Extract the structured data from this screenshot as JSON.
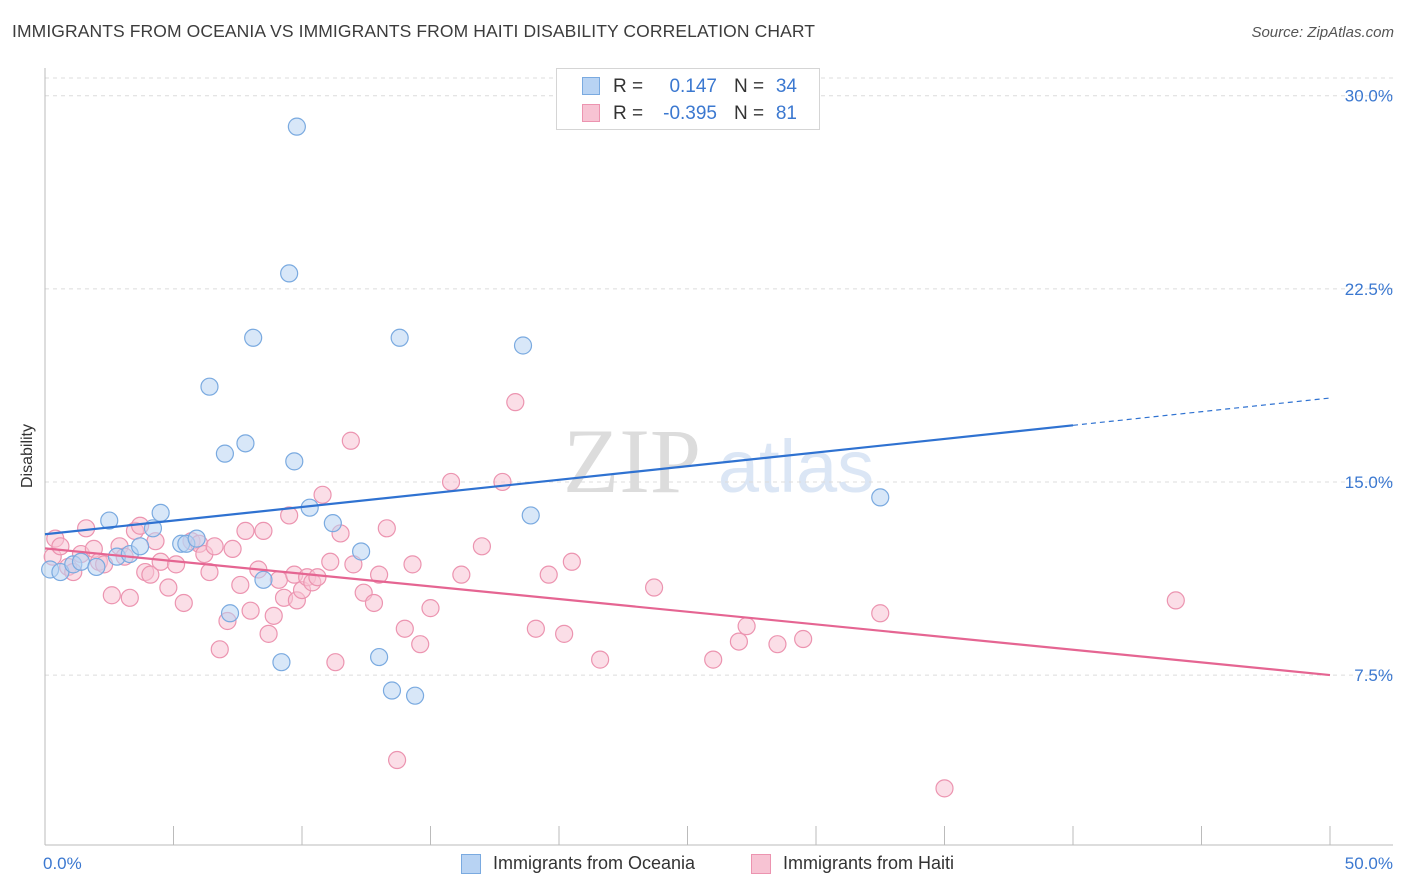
{
  "title": "IMMIGRANTS FROM OCEANIA VS IMMIGRANTS FROM HAITI DISABILITY CORRELATION CHART",
  "source": "Source: ZipAtlas.com",
  "watermark": {
    "zip": "ZIP",
    "atlas": "atlas"
  },
  "stats": [
    {
      "r_label": "R =",
      "r_value": "0.147",
      "n_label": "N =",
      "n_value": "34"
    },
    {
      "r_label": "R =",
      "r_value": "-0.395",
      "n_label": "N =",
      "n_value": "81"
    }
  ],
  "legend": [
    {
      "label": "Immigrants from Oceania"
    },
    {
      "label": "Immigrants from Haiti"
    }
  ],
  "colors": {
    "oceania_fill": "#b8d3f3",
    "oceania_stroke": "#7aaae0",
    "oceania_line": "#2f72d1",
    "haiti_fill": "#f7c3d3",
    "haiti_stroke": "#ec94b0",
    "haiti_line": "#e56592",
    "tick_label": "#3b78d0",
    "grid": "#dcdcdc"
  },
  "chart_data": {
    "type": "scatter",
    "title": "IMMIGRANTS FROM OCEANIA VS IMMIGRANTS FROM HAITI DISABILITY CORRELATION CHART",
    "xlabel": "",
    "ylabel": "Disability",
    "xlim": [
      0,
      50
    ],
    "ylim": [
      0.9,
      31.0
    ],
    "x_tick_labels": [
      "0.0%",
      "50.0%"
    ],
    "y_ticks": [
      7.5,
      15.0,
      22.5,
      30.0
    ],
    "y_tick_labels": [
      "7.5%",
      "15.0%",
      "22.5%",
      "30.0%"
    ],
    "grid": "horizontal dashed",
    "legend_position": "bottom-center",
    "series": [
      {
        "name": "Immigrants from Oceania",
        "points": [
          [
            0.2,
            11.6
          ],
          [
            0.6,
            11.5
          ],
          [
            1.1,
            11.8
          ],
          [
            1.4,
            11.9
          ],
          [
            2.0,
            11.7
          ],
          [
            2.5,
            13.5
          ],
          [
            2.8,
            12.1
          ],
          [
            3.3,
            12.2
          ],
          [
            3.7,
            12.5
          ],
          [
            4.2,
            13.2
          ],
          [
            4.5,
            13.8
          ],
          [
            5.3,
            12.6
          ],
          [
            5.5,
            12.6
          ],
          [
            5.9,
            12.8
          ],
          [
            6.4,
            18.7
          ],
          [
            7.0,
            16.1
          ],
          [
            7.2,
            9.9
          ],
          [
            7.8,
            16.5
          ],
          [
            8.1,
            20.6
          ],
          [
            8.5,
            11.2
          ],
          [
            9.2,
            8.0
          ],
          [
            9.5,
            23.1
          ],
          [
            9.8,
            28.8
          ],
          [
            9.7,
            15.8
          ],
          [
            10.3,
            14.0
          ],
          [
            11.2,
            13.4
          ],
          [
            12.3,
            12.3
          ],
          [
            13.0,
            8.2
          ],
          [
            13.5,
            6.9
          ],
          [
            13.8,
            20.6
          ],
          [
            14.4,
            6.7
          ],
          [
            18.6,
            20.3
          ],
          [
            18.9,
            13.7
          ],
          [
            32.5,
            14.4
          ]
        ],
        "trend": {
          "x": [
            0,
            40,
            50
          ],
          "y": [
            12.97,
            17.2,
            18.26
          ],
          "solid_to_x": 40
        }
      },
      {
        "name": "Immigrants from Haiti",
        "points": [
          [
            0.3,
            12.1
          ],
          [
            0.4,
            12.8
          ],
          [
            0.6,
            12.5
          ],
          [
            0.9,
            11.7
          ],
          [
            1.1,
            11.5
          ],
          [
            1.4,
            12.2
          ],
          [
            1.6,
            13.2
          ],
          [
            1.9,
            12.4
          ],
          [
            2.1,
            11.9
          ],
          [
            2.3,
            11.8
          ],
          [
            2.6,
            10.6
          ],
          [
            2.9,
            12.5
          ],
          [
            3.1,
            12.1
          ],
          [
            3.3,
            10.5
          ],
          [
            3.5,
            13.1
          ],
          [
            3.7,
            13.3
          ],
          [
            3.9,
            11.5
          ],
          [
            4.1,
            11.4
          ],
          [
            4.3,
            12.7
          ],
          [
            4.5,
            11.9
          ],
          [
            4.8,
            10.9
          ],
          [
            5.1,
            11.8
          ],
          [
            5.4,
            10.3
          ],
          [
            5.7,
            12.7
          ],
          [
            6.0,
            12.6
          ],
          [
            6.2,
            12.2
          ],
          [
            6.4,
            11.5
          ],
          [
            6.6,
            12.5
          ],
          [
            6.8,
            8.5
          ],
          [
            7.1,
            9.6
          ],
          [
            7.3,
            12.4
          ],
          [
            7.6,
            11.0
          ],
          [
            7.8,
            13.1
          ],
          [
            8.0,
            10.0
          ],
          [
            8.3,
            11.6
          ],
          [
            8.5,
            13.1
          ],
          [
            8.7,
            9.1
          ],
          [
            8.9,
            9.8
          ],
          [
            9.1,
            11.2
          ],
          [
            9.3,
            10.5
          ],
          [
            9.5,
            13.7
          ],
          [
            9.7,
            11.4
          ],
          [
            9.8,
            10.4
          ],
          [
            10.0,
            10.8
          ],
          [
            10.2,
            11.3
          ],
          [
            10.4,
            11.1
          ],
          [
            10.6,
            11.3
          ],
          [
            10.8,
            14.5
          ],
          [
            11.1,
            11.9
          ],
          [
            11.3,
            8.0
          ],
          [
            11.5,
            13.0
          ],
          [
            11.9,
            16.6
          ],
          [
            12.0,
            11.8
          ],
          [
            12.4,
            10.7
          ],
          [
            12.8,
            10.3
          ],
          [
            13.0,
            11.4
          ],
          [
            13.3,
            13.2
          ],
          [
            13.7,
            4.2
          ],
          [
            14.0,
            9.3
          ],
          [
            14.3,
            11.8
          ],
          [
            14.6,
            8.7
          ],
          [
            15.0,
            10.1
          ],
          [
            15.8,
            15.0
          ],
          [
            16.2,
            11.4
          ],
          [
            17.0,
            12.5
          ],
          [
            17.8,
            15.0
          ],
          [
            18.3,
            18.1
          ],
          [
            19.1,
            9.3
          ],
          [
            19.6,
            11.4
          ],
          [
            20.2,
            9.1
          ],
          [
            20.5,
            11.9
          ],
          [
            21.6,
            8.1
          ],
          [
            23.7,
            10.9
          ],
          [
            26.0,
            8.1
          ],
          [
            27.0,
            8.8
          ],
          [
            27.3,
            9.4
          ],
          [
            28.5,
            8.7
          ],
          [
            29.5,
            8.9
          ],
          [
            32.5,
            9.9
          ],
          [
            35.0,
            3.1
          ],
          [
            44.0,
            10.4
          ]
        ],
        "trend": {
          "x": [
            0,
            50
          ],
          "y": [
            12.42,
            7.5
          ],
          "solid_to_x": 50
        }
      }
    ]
  }
}
